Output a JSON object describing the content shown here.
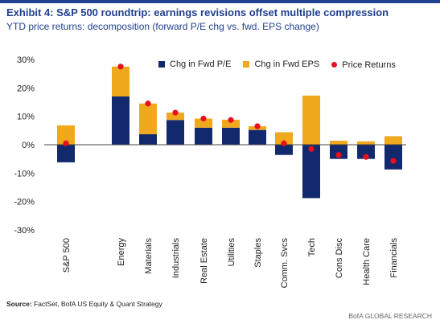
{
  "title": "Exhibit 4: S&P 500 roundtrip: earnings revisions offset multiple compression",
  "subtitle": "YTD price returns: decomposition (forward P/E chg vs. fwd. EPS change)",
  "source_label": "Source:",
  "source_text": " FactSet, BofA US Equity & Quant Strategy",
  "branding": "BofA GLOBAL RESEARCH",
  "colors": {
    "pe": "#13296e",
    "eps": "#f0a81c",
    "price": "#e8101c",
    "title": "#1f3f8f"
  },
  "chart_data": {
    "type": "bar",
    "stacked": true,
    "categories": [
      "S&P 500",
      "Energy",
      "Materials",
      "Industrials",
      "Real Estate",
      "Utilities",
      "Staples",
      "Comm. Svcs",
      "Tech",
      "Cons Disc",
      "Health Care",
      "Financials"
    ],
    "series": [
      {
        "name": "Chg in Fwd P/E",
        "type": "bar",
        "values": [
          -6.2,
          17.0,
          3.7,
          8.7,
          6.0,
          6.0,
          5.2,
          -3.6,
          -18.8,
          -5.0,
          -5.0,
          -8.7
        ]
      },
      {
        "name": "Chg in Fwd EPS",
        "type": "bar",
        "values": [
          6.8,
          10.5,
          10.8,
          2.6,
          3.2,
          2.8,
          1.3,
          4.4,
          17.3,
          1.4,
          1.2,
          3.0
        ]
      },
      {
        "name": "Price Returns",
        "type": "scatter",
        "values": [
          0.5,
          27.5,
          14.5,
          11.3,
          9.2,
          8.7,
          6.5,
          0.5,
          -1.5,
          -3.6,
          -4.3,
          -5.7
        ]
      }
    ],
    "ylim": [
      -30,
      30
    ],
    "yticks": [
      -30,
      -20,
      -10,
      0,
      10,
      20,
      30
    ],
    "ytick_labels": [
      "-30%",
      "-20%",
      "-10%",
      "0%",
      "10%",
      "20%",
      "30%"
    ],
    "legend_position": "top",
    "grid": false,
    "xlabel": "",
    "ylabel": ""
  }
}
